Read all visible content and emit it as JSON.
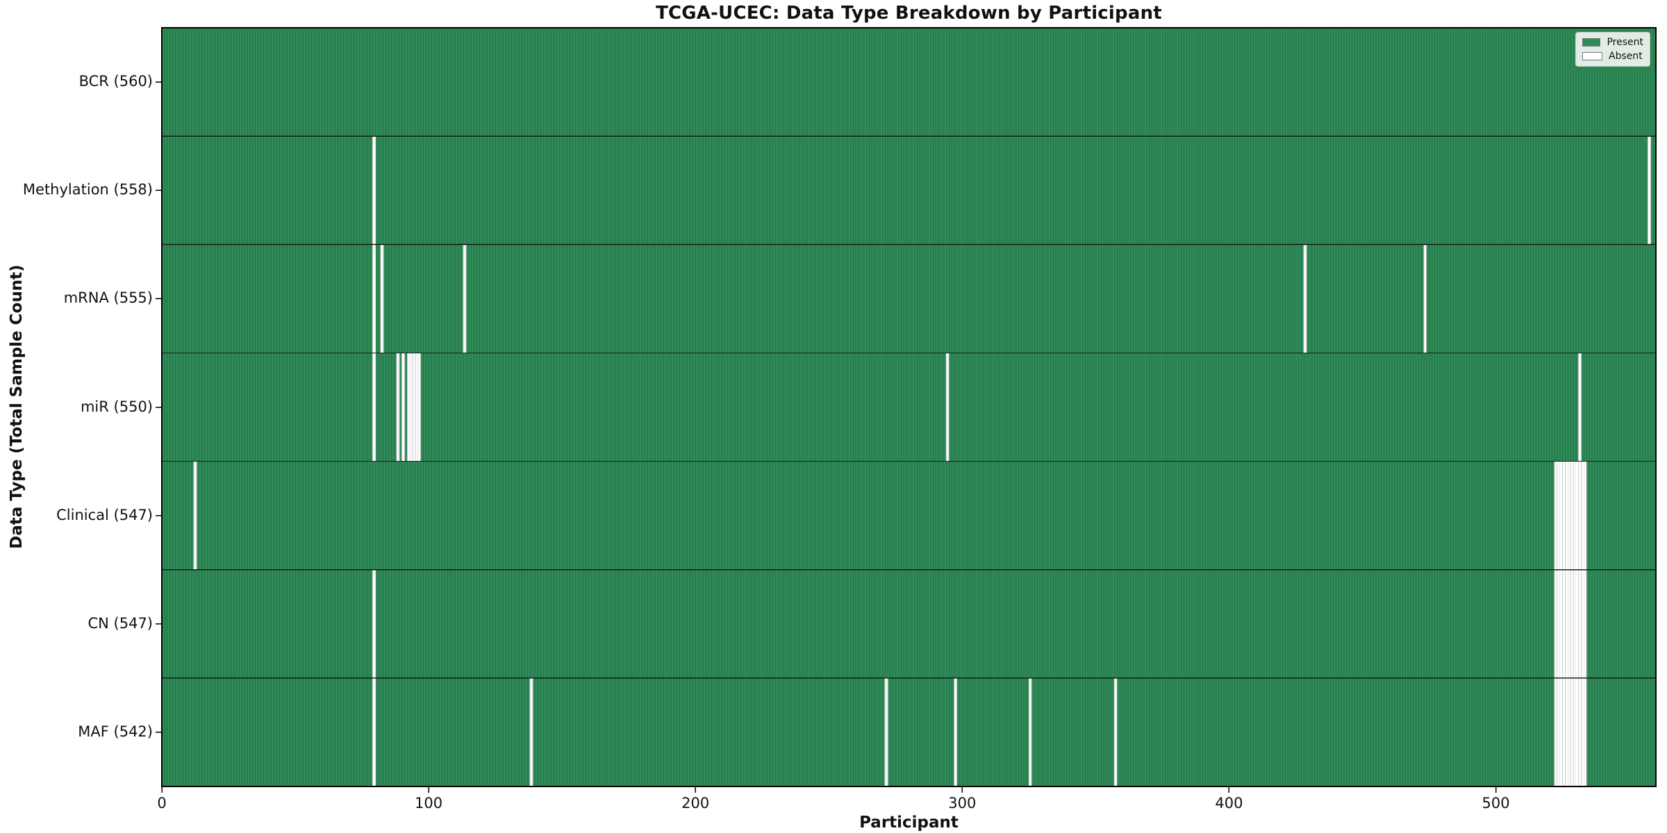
{
  "header": {
    "title": "TCGA-UCEC: Data Type Breakdown by Participant"
  },
  "axes": {
    "xlabel": "Participant",
    "ylabel": "Data Type (Total Sample Count)",
    "x_ticks": [
      0,
      100,
      200,
      300,
      400,
      500
    ]
  },
  "legend": {
    "items": [
      {
        "label": "Present",
        "color": "#2e8b57"
      },
      {
        "label": "Absent",
        "color": "#ffffff"
      }
    ]
  },
  "colors": {
    "present": "#2e8b57",
    "absent": "#ffffff",
    "cell_edge": "#1d5737",
    "absent_cell_edge": "#c9c9c9",
    "row_separator": "#1a1a1a",
    "plot_border": "#000000",
    "tick": "#000000"
  },
  "chart_data": {
    "type": "heatmap",
    "title": "TCGA-UCEC: Data Type Breakdown by Participant",
    "xlabel": "Participant",
    "ylabel": "Data Type (Total Sample Count)",
    "x_ticks": [
      0,
      100,
      200,
      300,
      400,
      500
    ],
    "xlim": [
      0,
      560
    ],
    "n_participants": 560,
    "grid": false,
    "legend_position": "upper right",
    "legend_entries": [
      "Present",
      "Absent"
    ],
    "rows": [
      {
        "data_type": "BCR",
        "total_count": 560,
        "label": "BCR (560)",
        "absent_participant_indices": []
      },
      {
        "data_type": "Methylation",
        "total_count": 558,
        "label": "Methylation (558)",
        "absent_participant_indices": [
          79,
          557
        ]
      },
      {
        "data_type": "mRNA",
        "total_count": 555,
        "label": "mRNA (555)",
        "absent_participant_indices": [
          79,
          82,
          113,
          428,
          473
        ]
      },
      {
        "data_type": "miR",
        "total_count": 550,
        "label": "miR (550)",
        "absent_participant_indices": [
          79,
          88,
          90,
          92,
          93,
          94,
          95,
          96,
          294,
          531
        ]
      },
      {
        "data_type": "Clinical",
        "total_count": 547,
        "label": "Clinical (547)",
        "absent_participant_indices": [
          12,
          522,
          523,
          524,
          525,
          526,
          527,
          528,
          529,
          530,
          531,
          532,
          533
        ]
      },
      {
        "data_type": "CN",
        "total_count": 547,
        "label": "CN (547)",
        "absent_participant_indices": [
          79,
          522,
          523,
          524,
          525,
          526,
          527,
          528,
          529,
          530,
          531,
          532,
          533
        ]
      },
      {
        "data_type": "MAF",
        "total_count": 542,
        "label": "MAF (542)",
        "absent_participant_indices": [
          79,
          138,
          271,
          297,
          325,
          357,
          522,
          523,
          524,
          525,
          526,
          527,
          528,
          529,
          530,
          531,
          532,
          533
        ]
      }
    ]
  }
}
